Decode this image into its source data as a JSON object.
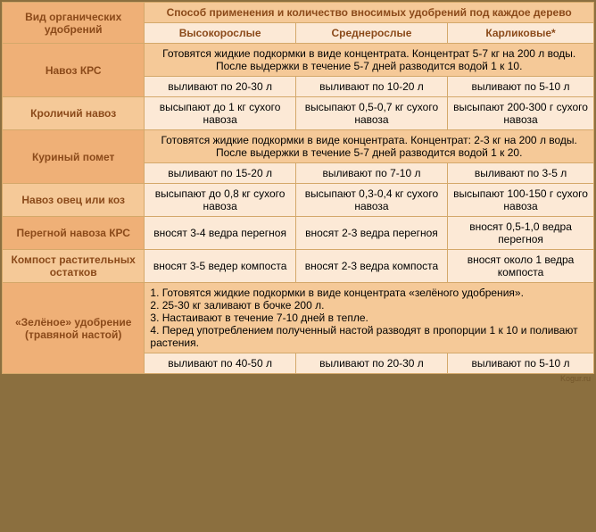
{
  "header": {
    "col1": "Вид органических удобрений",
    "colspan_title": "Способ применения и количество вносимых удобрений под каждое дерево",
    "sub1": "Высокорослые",
    "sub2": "Среднерослые",
    "sub3": "Карликовые*"
  },
  "rows": {
    "r1": {
      "label": "Навоз КРС",
      "note": "Готовятся жидкие подкормки в виде концентрата. Концентрат 5-7 кг на 200 л воды. После выдержки в течение 5-7 дней разводится водой 1 к 10.",
      "c1": "выливают по 20-30 л",
      "c2": "выливают по 10-20 л",
      "c3": "выливают по 5-10 л"
    },
    "r2": {
      "label": "Кроличий навоз",
      "c1": "высыпают до 1 кг сухого навоза",
      "c2": "высыпают 0,5-0,7 кг сухого навоза",
      "c3": "высыпают 200-300 г сухого навоза"
    },
    "r3": {
      "label": "Куриный помет",
      "note": "Готовятся жидкие подкормки в виде концентрата. Концентрат: 2-3 кг на 200 л воды. После выдержки в течение 5-7 дней разводится водой 1 к 20.",
      "c1": "выливают по 15-20 л",
      "c2": "выливают по 7-10 л",
      "c3": "выливают по 3-5 л"
    },
    "r4": {
      "label": "Навоз овец или коз",
      "c1": "высыпают до 0,8 кг сухого навоза",
      "c2": "высыпают 0,3-0,4 кг сухого навоза",
      "c3": "высыпают 100-150 г сухого навоза"
    },
    "r5": {
      "label": "Перегной навоза КРС",
      "c1": "вносят 3-4 ведра перегноя",
      "c2": "вносят 2-3 ведра перегноя",
      "c3": "вносят 0,5-1,0 ведра перегноя"
    },
    "r6": {
      "label": "Компост растительных остатков",
      "c1": "вносят 3-5 ведер компоста",
      "c2": "вносят 2-3 ведра компоста",
      "c3": "вносят около 1 ведра компоста"
    },
    "r7": {
      "label": "«Зелёное» удобрение (травяной настой)",
      "note": "1. Готовятся жидкие подкормки в виде концентрата «зелёного удобрения».\n2. 25-30 кг заливают в бочке 200 л.\n3. Настаивают в течение 7-10 дней в тепле.\n4. Перед употреблением полученный настой разводят в пропорции 1 к 10 и поливают растения.",
      "c1": "выливают по 40-50 л",
      "c2": "выливают по 20-30 л",
      "c3": "выливают по 5-10 л"
    }
  },
  "watermark": "Kogur.ru"
}
